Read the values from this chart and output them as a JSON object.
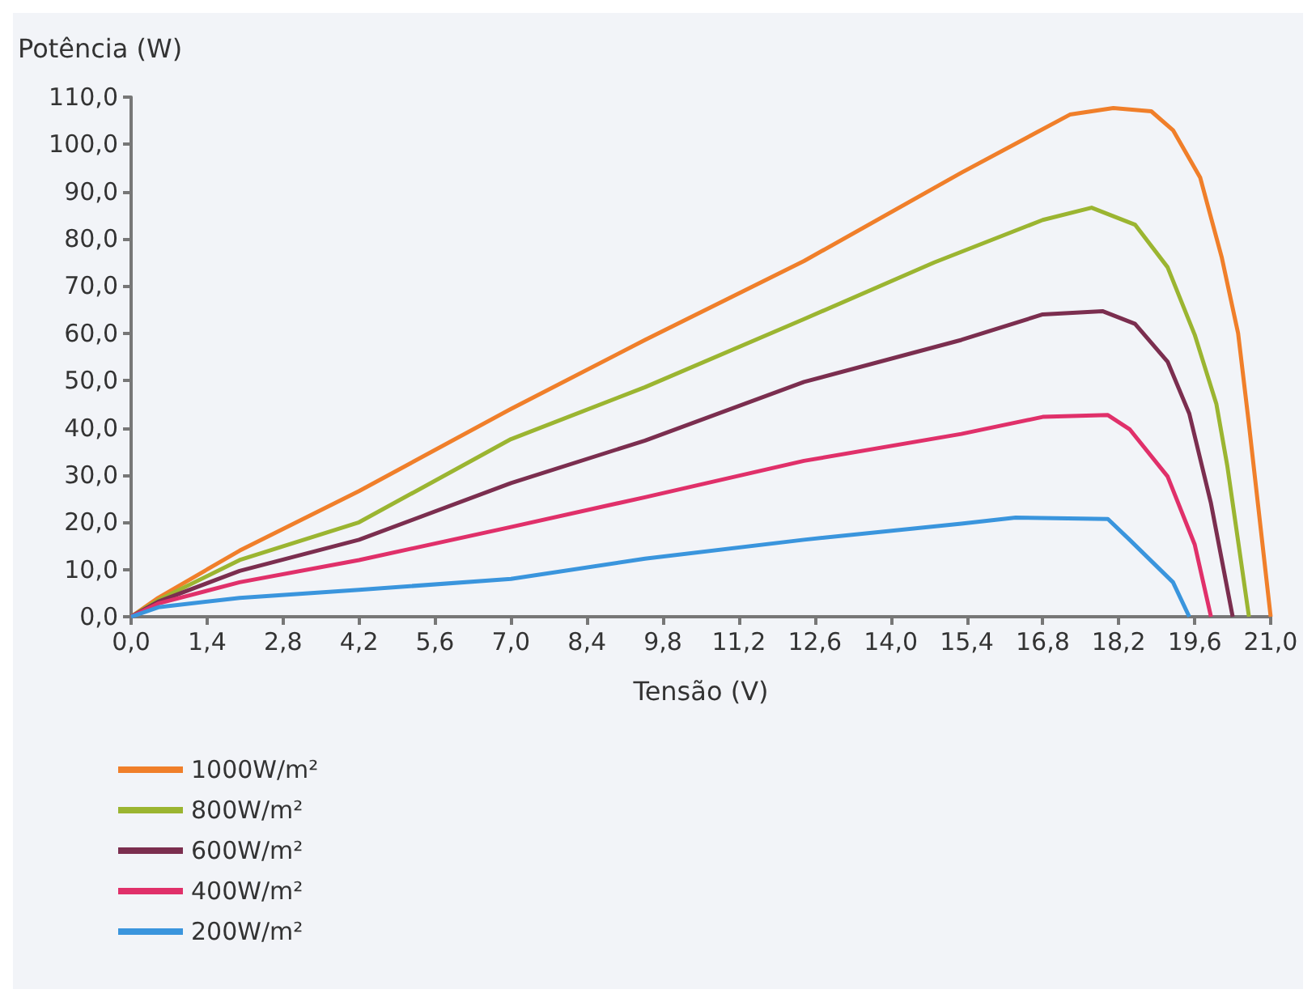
{
  "chart_data": {
    "type": "line",
    "ylabel": "Potência (W)",
    "xlabel": "Tensão (V)",
    "xlim": [
      0,
      21
    ],
    "ylim": [
      0,
      110
    ],
    "xticks": [
      {
        "value": 0,
        "label": "0,0"
      },
      {
        "value": 1.4,
        "label": "1,4"
      },
      {
        "value": 2.8,
        "label": "2,8"
      },
      {
        "value": 4.2,
        "label": "4,2"
      },
      {
        "value": 5.6,
        "label": "5,6"
      },
      {
        "value": 7,
        "label": "7,0"
      },
      {
        "value": 8.4,
        "label": "8,4"
      },
      {
        "value": 9.8,
        "label": "9,8"
      },
      {
        "value": 11.2,
        "label": "11,2"
      },
      {
        "value": 12.6,
        "label": "12,6"
      },
      {
        "value": 14,
        "label": "14,0"
      },
      {
        "value": 15.4,
        "label": "15,4"
      },
      {
        "value": 16.8,
        "label": "16,8"
      },
      {
        "value": 18.2,
        "label": "18,2"
      },
      {
        "value": 19.6,
        "label": "19,6"
      },
      {
        "value": 21,
        "label": "21,0"
      }
    ],
    "yticks": [
      {
        "value": 0,
        "label": "0,0"
      },
      {
        "value": 10,
        "label": "10,0"
      },
      {
        "value": 20,
        "label": "20,0"
      },
      {
        "value": 30,
        "label": "30,0"
      },
      {
        "value": 40,
        "label": "40,0"
      },
      {
        "value": 50,
        "label": "50,0"
      },
      {
        "value": 60,
        "label": "60,0"
      },
      {
        "value": 70,
        "label": "70,0"
      },
      {
        "value": 80,
        "label": "80,0"
      },
      {
        "value": 90,
        "label": "90,0"
      },
      {
        "value": 100,
        "label": "100,0"
      },
      {
        "value": 110,
        "label": "110,0"
      }
    ],
    "grid": false,
    "legend": "bottom left",
    "marker": "none",
    "line_style": "solid",
    "series": [
      {
        "name": "1000W/m²",
        "color": "#f07f2a",
        "x": [
          0,
          0.5,
          2,
          4.2,
          7,
          9.47,
          12.4,
          15.3,
          17.3,
          18.1,
          18.8,
          19.2,
          19.7,
          20.1,
          20.4,
          20.6,
          21
        ],
        "values": [
          0,
          4,
          14,
          26.6,
          44,
          58.6,
          75.3,
          94,
          106.3,
          107.7,
          107,
          103,
          93,
          76,
          60,
          40.7,
          0
        ]
      },
      {
        "name": "800W/m²",
        "color": "#9bb531",
        "x": [
          0,
          0.5,
          2,
          4.2,
          7,
          9.47,
          12.4,
          14.8,
          16.8,
          17.7,
          18.5,
          19.1,
          19.6,
          20,
          20.2,
          20.6
        ],
        "values": [
          0,
          3.5,
          12,
          20,
          37.6,
          48.6,
          63,
          75,
          84,
          86.6,
          83,
          74,
          59.7,
          45,
          32,
          0
        ]
      },
      {
        "name": "600W/m²",
        "color": "#7b2e4f",
        "x": [
          0,
          0.5,
          2,
          4.2,
          7,
          9.47,
          12.4,
          15.3,
          16.8,
          17.9,
          18.5,
          19.1,
          19.5,
          19.9,
          20.3
        ],
        "values": [
          0,
          3.2,
          9.7,
          16.3,
          28.3,
          37.3,
          49.7,
          58.6,
          64,
          64.7,
          62,
          54,
          43,
          24,
          0
        ]
      },
      {
        "name": "400W/m²",
        "color": "#e0306a",
        "x": [
          0,
          0.5,
          2,
          4.2,
          7,
          9.47,
          12.4,
          15.3,
          16.8,
          18,
          18.4,
          19.1,
          19.6,
          19.9
        ],
        "values": [
          0,
          2.8,
          7.3,
          12,
          19,
          25.3,
          33,
          38.7,
          42.3,
          42.7,
          39.7,
          29.7,
          15.3,
          0
        ]
      },
      {
        "name": "200W/m²",
        "color": "#3a95dd",
        "x": [
          0,
          0.5,
          2,
          4.2,
          7,
          9.47,
          12.4,
          15.3,
          16.3,
          18,
          18.4,
          19.2,
          19.5
        ],
        "values": [
          0,
          2,
          4,
          5.7,
          8,
          12.3,
          16.3,
          19.7,
          21,
          20.7,
          16.3,
          7.3,
          0
        ]
      }
    ]
  }
}
